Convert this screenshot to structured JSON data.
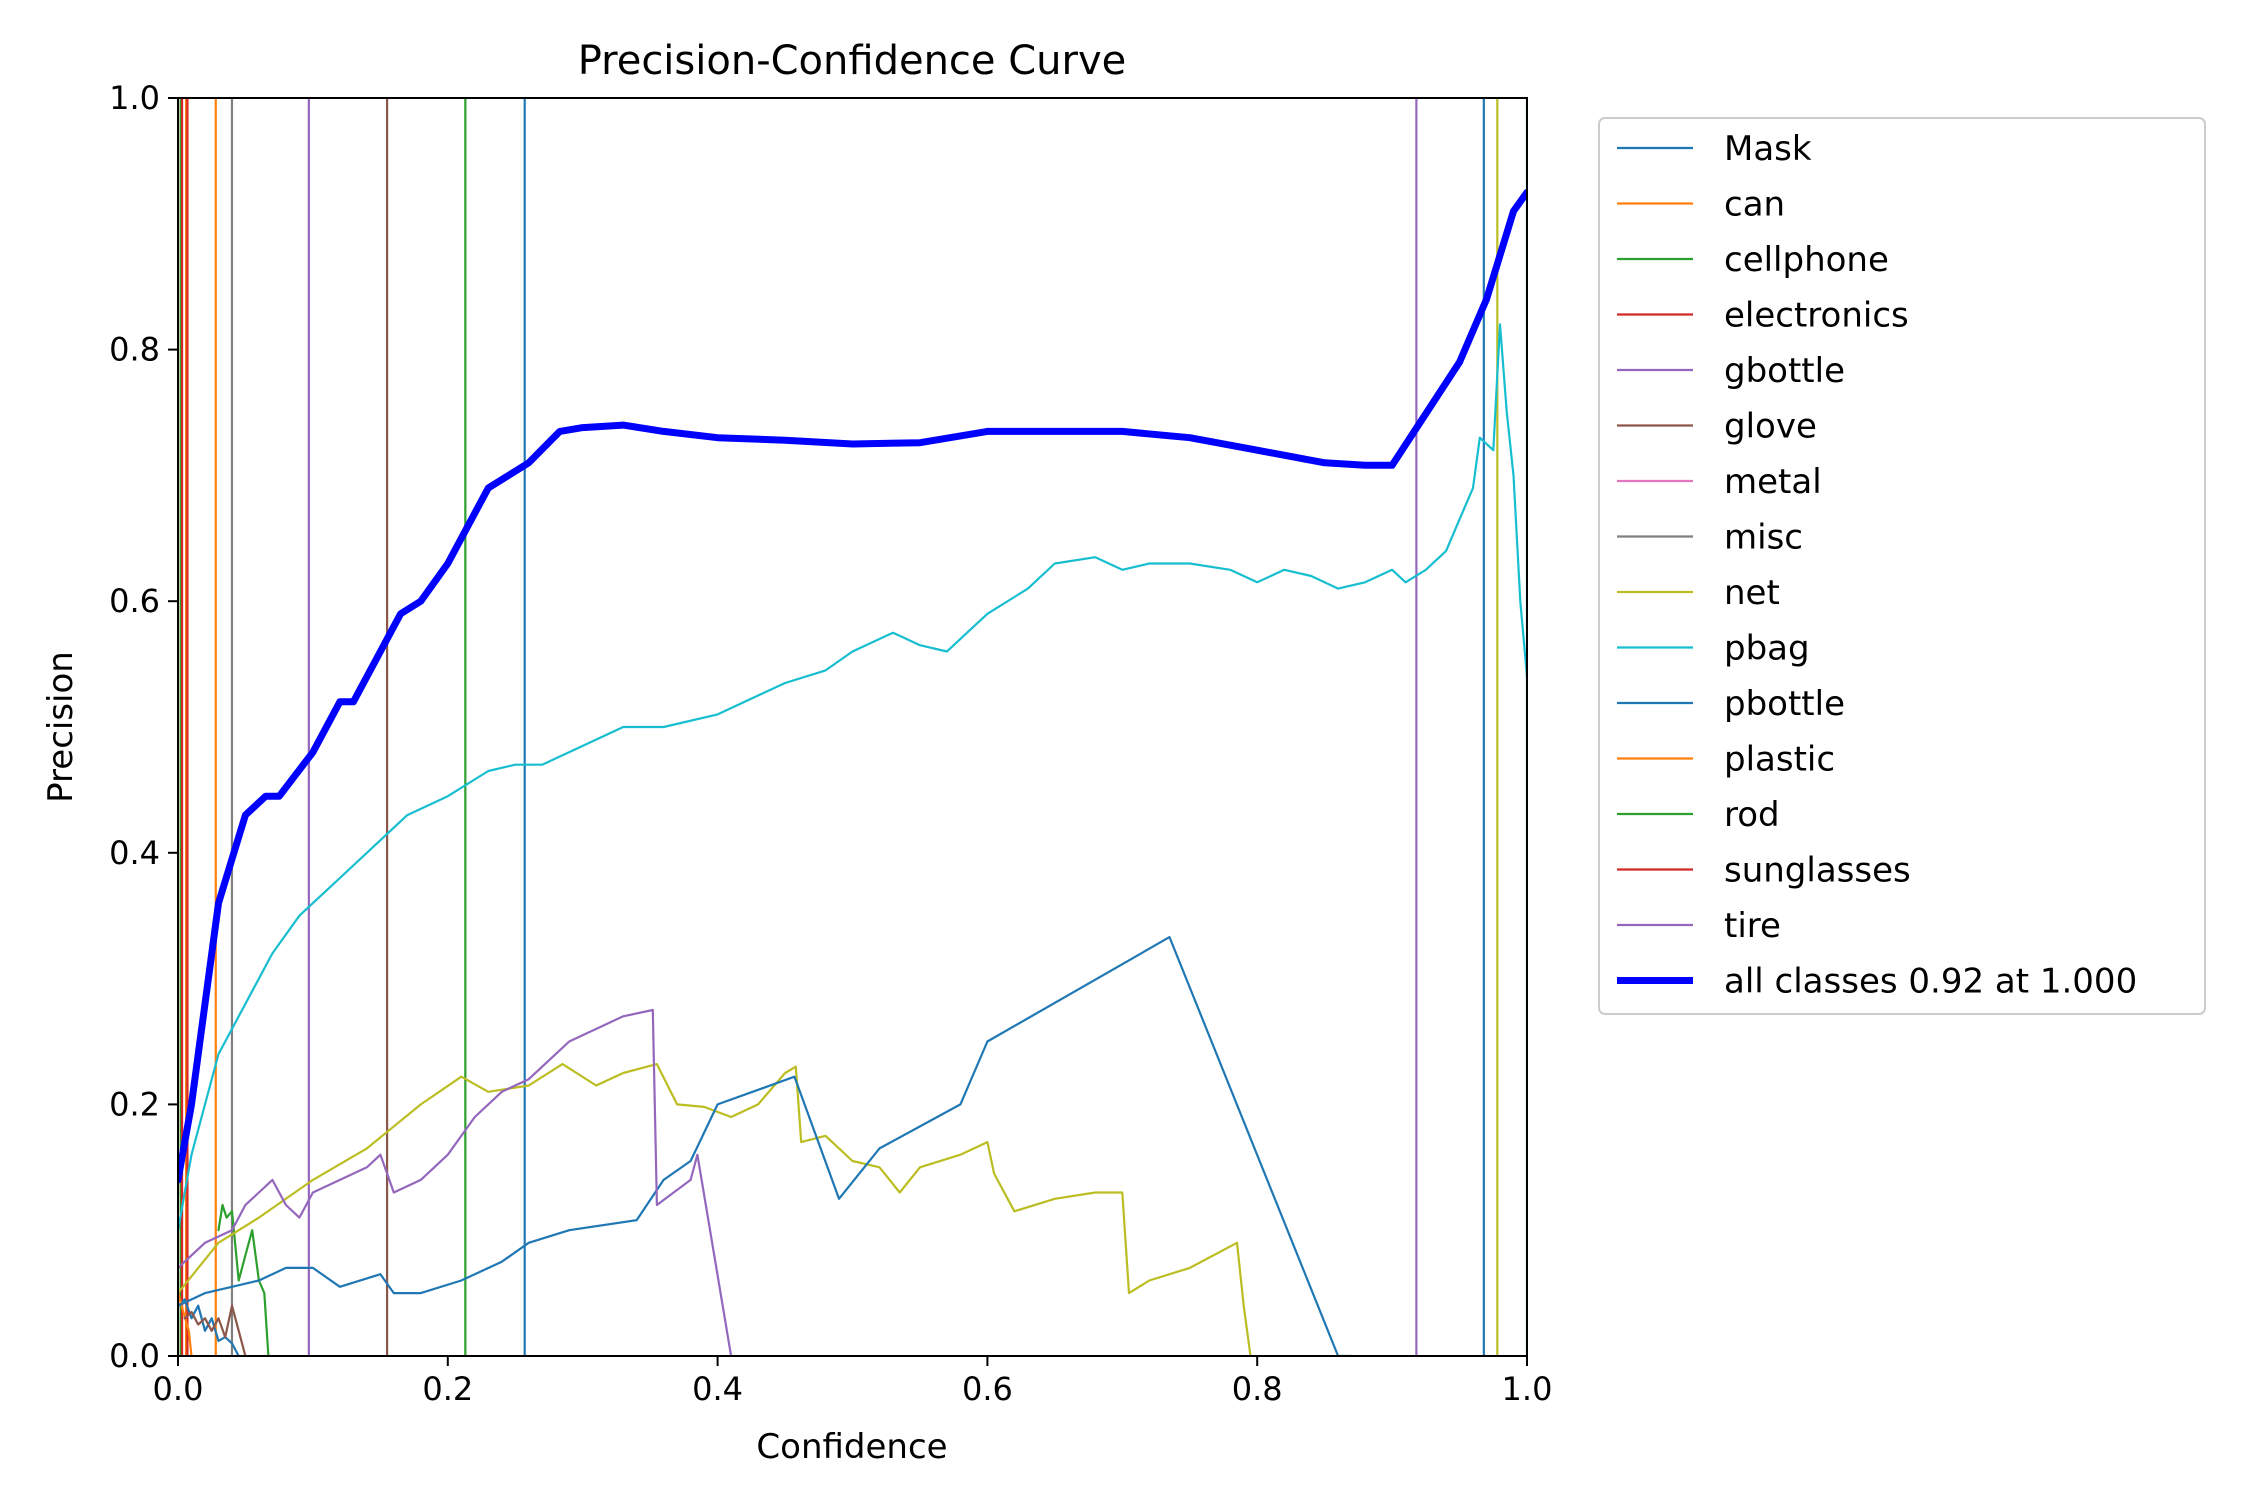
{
  "chart_data": {
    "type": "line",
    "title": "Precision-Confidence Curve",
    "xlabel": "Confidence",
    "ylabel": "Precision",
    "xlim": [
      0,
      1
    ],
    "ylim": [
      0,
      1
    ],
    "xticks": [
      "0.0",
      "0.2",
      "0.4",
      "0.6",
      "0.8",
      "1.0"
    ],
    "yticks": [
      "0.0",
      "0.2",
      "0.4",
      "0.6",
      "0.8",
      "1.0"
    ],
    "grid": false,
    "legend_position": "outside-right",
    "series": [
      {
        "name": "Mask",
        "color": "#1f77b4",
        "width": "thin",
        "x": [
          0.0,
          0.005,
          0.01,
          0.015,
          0.02,
          0.025,
          0.03,
          0.035,
          0.04,
          0.045
        ],
        "y": [
          0.04,
          0.045,
          0.03,
          0.04,
          0.02,
          0.03,
          0.012,
          0.015,
          0.01,
          0.0
        ],
        "vline": 0.968
      },
      {
        "name": "can",
        "color": "#ff7f0e",
        "width": "thin",
        "x": [
          0.0,
          0.004,
          0.008,
          0.01
        ],
        "y": [
          0.05,
          0.035,
          0.02,
          0.0
        ],
        "vline": 0.006
      },
      {
        "name": "cellphone",
        "color": "#2ca02c",
        "width": "thin",
        "x": [
          0.03,
          0.033,
          0.036,
          0.04,
          0.045,
          0.05,
          0.055,
          0.06,
          0.064,
          0.067
        ],
        "y": [
          0.1,
          0.12,
          0.11,
          0.115,
          0.06,
          0.08,
          0.1,
          0.06,
          0.05,
          0.0
        ],
        "vline": 0.002
      },
      {
        "name": "electronics",
        "color": "#d62728",
        "width": "thin",
        "x": [],
        "y": [],
        "vline": 0.007
      },
      {
        "name": "gbottle",
        "color": "#9467bd",
        "width": "thin",
        "x": [],
        "y": [],
        "vline": 0.097
      },
      {
        "name": "glove",
        "color": "#8c564b",
        "width": "thin",
        "x": [
          0.005,
          0.01,
          0.015,
          0.02,
          0.025,
          0.03,
          0.035,
          0.04,
          0.045,
          0.05
        ],
        "y": [
          0.03,
          0.035,
          0.025,
          0.03,
          0.02,
          0.03,
          0.015,
          0.04,
          0.02,
          0.0
        ],
        "vline": 0.155
      },
      {
        "name": "metal",
        "color": "#e377c2",
        "width": "thin",
        "x": [],
        "y": [],
        "vline": null
      },
      {
        "name": "misc",
        "color": "#7f7f7f",
        "width": "thin",
        "x": [],
        "y": [],
        "vline": 0.04
      },
      {
        "name": "net",
        "color": "#bcbd22",
        "width": "thin",
        "x": [
          0.0,
          0.03,
          0.06,
          0.1,
          0.14,
          0.18,
          0.21,
          0.23,
          0.26,
          0.285,
          0.31,
          0.33,
          0.355,
          0.37,
          0.39,
          0.41,
          0.43,
          0.45,
          0.458,
          0.462,
          0.48,
          0.5,
          0.52,
          0.535,
          0.55,
          0.58,
          0.6,
          0.605,
          0.62,
          0.65,
          0.68,
          0.7,
          0.705,
          0.72,
          0.75,
          0.785,
          0.79,
          0.795
        ],
        "y": [
          0.05,
          0.09,
          0.11,
          0.14,
          0.165,
          0.2,
          0.222,
          0.21,
          0.215,
          0.232,
          0.215,
          0.225,
          0.232,
          0.2,
          0.198,
          0.19,
          0.2,
          0.225,
          0.23,
          0.17,
          0.175,
          0.155,
          0.15,
          0.13,
          0.15,
          0.16,
          0.17,
          0.145,
          0.115,
          0.125,
          0.13,
          0.13,
          0.05,
          0.06,
          0.07,
          0.09,
          0.04,
          0.0
        ],
        "vline": 0.978
      },
      {
        "name": "pbag",
        "color": "#17becf",
        "width": "thin",
        "x": [
          0.0,
          0.01,
          0.02,
          0.03,
          0.05,
          0.07,
          0.09,
          0.1,
          0.12,
          0.15,
          0.17,
          0.2,
          0.23,
          0.25,
          0.27,
          0.3,
          0.33,
          0.36,
          0.4,
          0.43,
          0.45,
          0.48,
          0.5,
          0.53,
          0.55,
          0.57,
          0.58,
          0.6,
          0.63,
          0.65,
          0.68,
          0.7,
          0.72,
          0.75,
          0.78,
          0.8,
          0.82,
          0.84,
          0.86,
          0.88,
          0.9,
          0.91,
          0.925,
          0.94,
          0.95,
          0.96,
          0.965,
          0.975,
          0.98,
          0.985,
          0.99,
          0.995,
          1.0
        ],
        "y": [
          0.1,
          0.16,
          0.2,
          0.24,
          0.28,
          0.32,
          0.35,
          0.36,
          0.38,
          0.41,
          0.43,
          0.445,
          0.465,
          0.47,
          0.47,
          0.485,
          0.5,
          0.5,
          0.51,
          0.525,
          0.535,
          0.545,
          0.56,
          0.575,
          0.565,
          0.56,
          0.57,
          0.59,
          0.61,
          0.63,
          0.635,
          0.625,
          0.63,
          0.63,
          0.625,
          0.615,
          0.625,
          0.62,
          0.61,
          0.615,
          0.625,
          0.615,
          0.625,
          0.64,
          0.665,
          0.69,
          0.73,
          0.72,
          0.82,
          0.75,
          0.7,
          0.6,
          0.54
        ],
        "vline": 1.0
      },
      {
        "name": "pbottle",
        "color": "#1f77b4",
        "width": "thin",
        "x": [
          0.0,
          0.02,
          0.04,
          0.06,
          0.08,
          0.1,
          0.12,
          0.15,
          0.16,
          0.18,
          0.21,
          0.24,
          0.26,
          0.29,
          0.34,
          0.36,
          0.38,
          0.4,
          0.457,
          0.49,
          0.52,
          0.58,
          0.6,
          0.735,
          0.86,
          0.87
        ],
        "y": [
          0.04,
          0.05,
          0.055,
          0.06,
          0.07,
          0.07,
          0.055,
          0.065,
          0.05,
          0.05,
          0.06,
          0.075,
          0.09,
          0.1,
          0.108,
          0.14,
          0.155,
          0.2,
          0.222,
          0.125,
          0.165,
          0.2,
          0.25,
          0.333,
          0.0,
          0.0
        ],
        "vline": 0.257
      },
      {
        "name": "plastic",
        "color": "#ff7f0e",
        "width": "thin",
        "x": [],
        "y": [],
        "vline": 0.028
      },
      {
        "name": "rod",
        "color": "#2ca02c",
        "width": "thin",
        "x": [],
        "y": [],
        "vline": 0.213
      },
      {
        "name": "sunglasses",
        "color": "#d62728",
        "width": "thin",
        "x": [],
        "y": [],
        "vline": 0.003
      },
      {
        "name": "tire",
        "color": "#9467bd",
        "width": "thin",
        "x": [
          0.0,
          0.02,
          0.04,
          0.05,
          0.06,
          0.07,
          0.08,
          0.09,
          0.1,
          0.12,
          0.14,
          0.15,
          0.16,
          0.18,
          0.2,
          0.22,
          0.24,
          0.26,
          0.28,
          0.29,
          0.33,
          0.352,
          0.355,
          0.38,
          0.385,
          0.41
        ],
        "y": [
          0.07,
          0.09,
          0.1,
          0.12,
          0.13,
          0.14,
          0.12,
          0.11,
          0.13,
          0.14,
          0.15,
          0.16,
          0.13,
          0.14,
          0.16,
          0.19,
          0.21,
          0.22,
          0.24,
          0.25,
          0.27,
          0.275,
          0.12,
          0.14,
          0.16,
          0.0
        ],
        "vline": 0.918
      },
      {
        "name": "all classes 0.92 at 1.000",
        "color": "#0000ff",
        "width": "thick",
        "x": [
          0.0,
          0.01,
          0.02,
          0.03,
          0.05,
          0.065,
          0.075,
          0.1,
          0.12,
          0.13,
          0.15,
          0.165,
          0.18,
          0.2,
          0.22,
          0.23,
          0.26,
          0.283,
          0.3,
          0.33,
          0.36,
          0.4,
          0.45,
          0.5,
          0.55,
          0.6,
          0.65,
          0.7,
          0.75,
          0.8,
          0.85,
          0.88,
          0.9,
          0.95,
          0.97,
          0.99,
          1.0
        ],
        "y": [
          0.14,
          0.2,
          0.28,
          0.36,
          0.43,
          0.445,
          0.445,
          0.48,
          0.52,
          0.52,
          0.56,
          0.59,
          0.6,
          0.63,
          0.67,
          0.69,
          0.71,
          0.735,
          0.738,
          0.74,
          0.735,
          0.73,
          0.728,
          0.725,
          0.726,
          0.735,
          0.735,
          0.735,
          0.73,
          0.72,
          0.71,
          0.708,
          0.708,
          0.79,
          0.84,
          0.91,
          0.925
        ],
        "vline": null
      }
    ]
  }
}
